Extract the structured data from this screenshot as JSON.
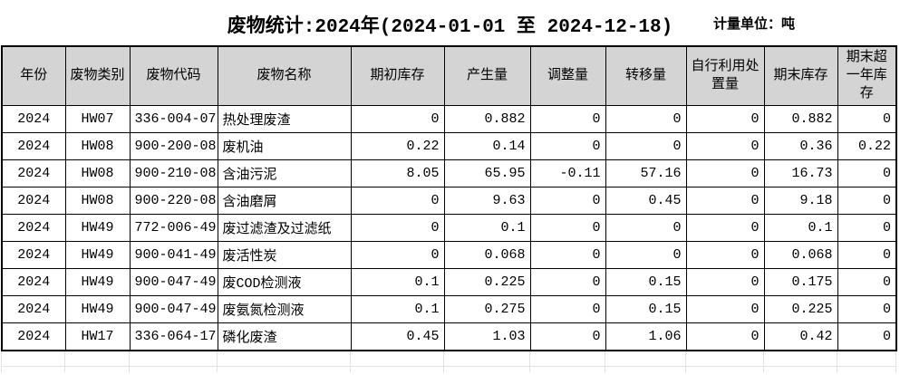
{
  "title": "废物统计:2024年(2024-01-01 至 2024-12-18)",
  "unit_label": "计量单位：吨",
  "colors": {
    "header_bg": "#d4d4d4",
    "table_border": "#000000",
    "ghost_grid": "#e2e2e2",
    "background": "#ffffff"
  },
  "table": {
    "columns": [
      "年份",
      "废物类别",
      "废物代码",
      "废物名称",
      "期初库存",
      "产生量",
      "调整量",
      "转移量",
      "自行利用处置量",
      "期末库存",
      "期末超一年库存"
    ],
    "rows": [
      [
        "2024",
        "HW07",
        "336-004-07",
        "热处理废渣",
        "0",
        "0.882",
        "0",
        "0",
        "0",
        "0.882",
        "0"
      ],
      [
        "2024",
        "HW08",
        "900-200-08",
        "废机油",
        "0.22",
        "0.14",
        "0",
        "0",
        "0",
        "0.36",
        "0.22"
      ],
      [
        "2024",
        "HW08",
        "900-210-08",
        "含油污泥",
        "8.05",
        "65.95",
        "-0.11",
        "57.16",
        "0",
        "16.73",
        "0"
      ],
      [
        "2024",
        "HW08",
        "900-220-08",
        "含油磨屑",
        "0",
        "9.63",
        "0",
        "0.45",
        "0",
        "9.18",
        "0"
      ],
      [
        "2024",
        "HW49",
        "772-006-49",
        "废过滤渣及过滤纸",
        "0",
        "0.1",
        "0",
        "0",
        "0",
        "0.1",
        "0"
      ],
      [
        "2024",
        "HW49",
        "900-041-49",
        "废活性炭",
        "0",
        "0.068",
        "0",
        "0",
        "0",
        "0.068",
        "0"
      ],
      [
        "2024",
        "HW49",
        "900-047-49",
        "废COD检测液",
        "0.1",
        "0.225",
        "0",
        "0.15",
        "0",
        "0.175",
        "0"
      ],
      [
        "2024",
        "HW49",
        "900-047-49",
        "废氨氮检测液",
        "0.1",
        "0.275",
        "0",
        "0.15",
        "0",
        "0.225",
        "0"
      ],
      [
        "2024",
        "HW17",
        "336-064-17",
        "磷化废渣",
        "0.45",
        "1.03",
        "0",
        "1.06",
        "0",
        "0.42",
        "0"
      ]
    ]
  }
}
